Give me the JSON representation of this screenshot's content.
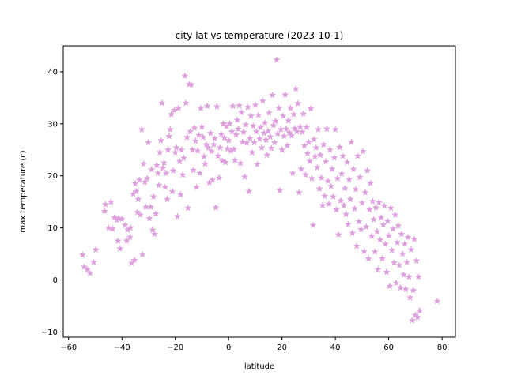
{
  "chart_data": {
    "type": "scatter",
    "title": "city lat vs temperature  (2023-10-1)",
    "xlabel": "latitude",
    "ylabel": "max temperature (c)",
    "xlim": [
      -62,
      85
    ],
    "ylim": [
      -11,
      45
    ],
    "xticks": [
      -60,
      -40,
      -20,
      0,
      20,
      40,
      60,
      80
    ],
    "yticks": [
      -10,
      0,
      10,
      20,
      30,
      40
    ],
    "grid": false,
    "marker": "star",
    "color": "#dda0dd",
    "points": [
      [
        -54.8,
        4.8
      ],
      [
        -54.2,
        2.5
      ],
      [
        -53.0,
        2.0
      ],
      [
        -52.0,
        1.3
      ],
      [
        -50.6,
        3.4
      ],
      [
        -49.8,
        5.8
      ],
      [
        -46.5,
        13.2
      ],
      [
        -46.2,
        14.5
      ],
      [
        -45.0,
        10.0
      ],
      [
        -44.1,
        15.0
      ],
      [
        -43.5,
        9.8
      ],
      [
        -42.8,
        12.0
      ],
      [
        -42.0,
        11.5
      ],
      [
        -41.5,
        7.5
      ],
      [
        -41.2,
        11.8
      ],
      [
        -40.7,
        6.0
      ],
      [
        -40.0,
        11.7
      ],
      [
        -38.8,
        10.5
      ],
      [
        -38.2,
        7.5
      ],
      [
        -37.8,
        9.6
      ],
      [
        -37.0,
        8.2
      ],
      [
        -36.8,
        10.0
      ],
      [
        -36.4,
        3.2
      ],
      [
        -35.8,
        16.5
      ],
      [
        -35.3,
        3.8
      ],
      [
        -35.0,
        18.5
      ],
      [
        -34.6,
        17.0
      ],
      [
        -34.2,
        13.0
      ],
      [
        -33.9,
        15.5
      ],
      [
        -33.5,
        19.2
      ],
      [
        -33.1,
        12.5
      ],
      [
        -32.6,
        28.9
      ],
      [
        -32.3,
        4.9
      ],
      [
        -31.9,
        22.3
      ],
      [
        -31.4,
        18.8
      ],
      [
        -31.0,
        14.0
      ],
      [
        -30.5,
        19.5
      ],
      [
        -30.1,
        26.4
      ],
      [
        -29.7,
        11.8
      ],
      [
        -29.2,
        14.0
      ],
      [
        -28.9,
        21.2
      ],
      [
        -28.5,
        9.6
      ],
      [
        -28.2,
        16.0
      ],
      [
        -27.8,
        8.8
      ],
      [
        -27.3,
        12.7
      ],
      [
        -26.9,
        22.0
      ],
      [
        -26.5,
        20.5
      ],
      [
        -26.1,
        18.2
      ],
      [
        -25.8,
        24.5
      ],
      [
        -25.4,
        26.8
      ],
      [
        -25.0,
        34.0
      ],
      [
        -24.6,
        21.5
      ],
      [
        -24.2,
        22.5
      ],
      [
        -23.8,
        17.8
      ],
      [
        -23.4,
        20.5
      ],
      [
        -23.0,
        15.5
      ],
      [
        -22.7,
        25.0
      ],
      [
        -22.3,
        27.6
      ],
      [
        -21.9,
        28.9
      ],
      [
        -21.5,
        31.8
      ],
      [
        -21.1,
        17.0
      ],
      [
        -20.8,
        21.0
      ],
      [
        -20.4,
        32.6
      ],
      [
        -20.0,
        24.5
      ],
      [
        -19.6,
        25.4
      ],
      [
        -19.2,
        12.2
      ],
      [
        -18.8,
        33.0
      ],
      [
        -18.4,
        22.8
      ],
      [
        -18.0,
        16.4
      ],
      [
        -17.6,
        25.0
      ],
      [
        -17.2,
        20.2
      ],
      [
        -16.8,
        23.4
      ],
      [
        -16.4,
        39.2
      ],
      [
        -16.0,
        34.0
      ],
      [
        -15.6,
        27.4
      ],
      [
        -15.2,
        13.8
      ],
      [
        -14.8,
        37.6
      ],
      [
        -14.4,
        28.5
      ],
      [
        -14.0,
        37.5
      ],
      [
        -13.6,
        25.0
      ],
      [
        -13.2,
        21.1
      ],
      [
        -12.8,
        29.2
      ],
      [
        -12.4,
        26.7
      ],
      [
        -12.0,
        17.8
      ],
      [
        -11.6,
        24.8
      ],
      [
        -11.2,
        27.8
      ],
      [
        -10.8,
        20.5
      ],
      [
        -10.4,
        33.0
      ],
      [
        -10.0,
        29.4
      ],
      [
        -9.6,
        27.4
      ],
      [
        -9.2,
        23.7
      ],
      [
        -8.8,
        22.3
      ],
      [
        -8.4,
        26.0
      ],
      [
        -8.0,
        33.4
      ],
      [
        -7.6,
        25.4
      ],
      [
        -7.2,
        18.7
      ],
      [
        -6.8,
        28.2
      ],
      [
        -6.4,
        24.7
      ],
      [
        -6.0,
        19.2
      ],
      [
        -5.6,
        26.0
      ],
      [
        -5.2,
        27.2
      ],
      [
        -4.8,
        13.9
      ],
      [
        -4.4,
        33.3
      ],
      [
        -4.0,
        23.8
      ],
      [
        -3.6,
        19.6
      ],
      [
        -3.2,
        25.4
      ],
      [
        -2.8,
        28.0
      ],
      [
        -2.4,
        22.9
      ],
      [
        -2.0,
        30.0
      ],
      [
        -1.6,
        27.3
      ],
      [
        -1.2,
        22.6
      ],
      [
        -0.8,
        29.5
      ],
      [
        -0.4,
        25.2
      ],
      [
        0.0,
        26.8
      ],
      [
        0.4,
        30.0
      ],
      [
        0.8,
        24.8
      ],
      [
        1.2,
        28.5
      ],
      [
        1.6,
        33.4
      ],
      [
        2.0,
        25.1
      ],
      [
        2.4,
        23.0
      ],
      [
        2.8,
        27.9
      ],
      [
        3.2,
        30.7
      ],
      [
        3.6,
        29.0
      ],
      [
        4.0,
        33.5
      ],
      [
        4.4,
        22.4
      ],
      [
        4.8,
        32.2
      ],
      [
        5.2,
        26.5
      ],
      [
        5.6,
        28.4
      ],
      [
        6.0,
        19.8
      ],
      [
        6.4,
        29.8
      ],
      [
        6.8,
        26.3
      ],
      [
        7.2,
        33.2
      ],
      [
        7.6,
        17.0
      ],
      [
        8.0,
        27.2
      ],
      [
        8.4,
        31.5
      ],
      [
        8.8,
        24.5
      ],
      [
        9.2,
        29.6
      ],
      [
        9.6,
        26.4
      ],
      [
        10.0,
        33.6
      ],
      [
        10.4,
        28.5
      ],
      [
        10.8,
        22.2
      ],
      [
        11.2,
        31.7
      ],
      [
        11.6,
        27.1
      ],
      [
        12.0,
        29.3
      ],
      [
        12.4,
        25.4
      ],
      [
        12.8,
        34.4
      ],
      [
        13.2,
        28.2
      ],
      [
        13.6,
        30.2
      ],
      [
        14.0,
        26.9
      ],
      [
        14.4,
        24.0
      ],
      [
        14.8,
        28.6
      ],
      [
        15.2,
        32.1
      ],
      [
        15.6,
        27.5
      ],
      [
        16.0,
        25.3
      ],
      [
        16.4,
        35.5
      ],
      [
        16.8,
        29.7
      ],
      [
        17.2,
        26.4
      ],
      [
        17.6,
        30.5
      ],
      [
        18.0,
        42.3
      ],
      [
        18.4,
        28.1
      ],
      [
        18.8,
        33.0
      ],
      [
        19.2,
        17.2
      ],
      [
        19.6,
        28.9
      ],
      [
        20.0,
        25.0
      ],
      [
        20.4,
        31.5
      ],
      [
        20.8,
        27.6
      ],
      [
        21.2,
        35.6
      ],
      [
        21.6,
        29.0
      ],
      [
        22.0,
        25.8
      ],
      [
        22.4,
        30.6
      ],
      [
        22.8,
        28.3
      ],
      [
        23.2,
        33.0
      ],
      [
        23.6,
        27.7
      ],
      [
        24.0,
        20.5
      ],
      [
        24.4,
        31.8
      ],
      [
        24.8,
        29.1
      ],
      [
        25.2,
        36.7
      ],
      [
        25.6,
        28.5
      ],
      [
        26.0,
        33.9
      ],
      [
        26.4,
        16.8
      ],
      [
        26.8,
        29.4
      ],
      [
        27.2,
        21.3
      ],
      [
        27.6,
        28.4
      ],
      [
        28.0,
        31.9
      ],
      [
        28.4,
        25.8
      ],
      [
        28.8,
        20.2
      ],
      [
        29.2,
        29.3
      ],
      [
        29.6,
        24.3
      ],
      [
        30.0,
        26.5
      ],
      [
        30.4,
        22.8
      ],
      [
        30.8,
        32.9
      ],
      [
        31.2,
        19.5
      ],
      [
        31.6,
        10.5
      ],
      [
        32.0,
        27.0
      ],
      [
        32.4,
        23.7
      ],
      [
        32.8,
        25.4
      ],
      [
        33.2,
        21.6
      ],
      [
        33.6,
        28.9
      ],
      [
        34.0,
        17.5
      ],
      [
        34.4,
        24.0
      ],
      [
        34.8,
        19.6
      ],
      [
        35.2,
        14.3
      ],
      [
        35.6,
        26.0
      ],
      [
        36.0,
        16.1
      ],
      [
        36.4,
        22.7
      ],
      [
        36.8,
        29.0
      ],
      [
        37.2,
        19.0
      ],
      [
        37.6,
        14.6
      ],
      [
        38.0,
        25.0
      ],
      [
        38.4,
        18.0
      ],
      [
        38.8,
        21.3
      ],
      [
        39.2,
        16.0
      ],
      [
        39.6,
        23.5
      ],
      [
        40.0,
        28.9
      ],
      [
        40.4,
        13.5
      ],
      [
        40.8,
        19.5
      ],
      [
        41.2,
        8.7
      ],
      [
        41.6,
        25.5
      ],
      [
        42.0,
        15.2
      ],
      [
        42.4,
        20.4
      ],
      [
        42.8,
        23.8
      ],
      [
        43.2,
        14.3
      ],
      [
        43.6,
        17.6
      ],
      [
        44.0,
        12.6
      ],
      [
        44.4,
        22.6
      ],
      [
        44.8,
        10.7
      ],
      [
        45.2,
        19.3
      ],
      [
        45.6,
        15.5
      ],
      [
        46.0,
        26.5
      ],
      [
        46.4,
        9.0
      ],
      [
        46.8,
        21.3
      ],
      [
        47.2,
        13.7
      ],
      [
        47.6,
        17.4
      ],
      [
        48.0,
        6.5
      ],
      [
        48.4,
        23.8
      ],
      [
        48.8,
        11.2
      ],
      [
        49.2,
        19.7
      ],
      [
        49.6,
        9.7
      ],
      [
        50.0,
        14.8
      ],
      [
        50.4,
        24.7
      ],
      [
        50.8,
        5.5
      ],
      [
        51.2,
        16.8
      ],
      [
        51.6,
        10.2
      ],
      [
        52.0,
        21.0
      ],
      [
        52.4,
        4.1
      ],
      [
        52.8,
        13.5
      ],
      [
        53.2,
        18.6
      ],
      [
        53.6,
        8.4
      ],
      [
        54.0,
        15.1
      ],
      [
        54.4,
        11.6
      ],
      [
        54.8,
        5.4
      ],
      [
        55.2,
        13.9
      ],
      [
        55.6,
        9.3
      ],
      [
        56.0,
        2.0
      ],
      [
        56.4,
        14.9
      ],
      [
        56.8,
        7.7
      ],
      [
        57.2,
        12.0
      ],
      [
        57.6,
        4.1
      ],
      [
        58.0,
        10.6
      ],
      [
        58.4,
        14.2
      ],
      [
        58.8,
        6.9
      ],
      [
        59.2,
        1.5
      ],
      [
        59.6,
        11.3
      ],
      [
        60.0,
        8.5
      ],
      [
        60.4,
        -1.2
      ],
      [
        60.8,
        13.8
      ],
      [
        61.2,
        5.7
      ],
      [
        61.6,
        9.8
      ],
      [
        62.0,
        3.3
      ],
      [
        62.4,
        12.5
      ],
      [
        62.8,
        -0.6
      ],
      [
        63.2,
        7.2
      ],
      [
        63.6,
        10.4
      ],
      [
        64.0,
        2.8
      ],
      [
        64.4,
        -1.5
      ],
      [
        64.8,
        8.8
      ],
      [
        65.2,
        5.0
      ],
      [
        65.6,
        1.0
      ],
      [
        66.0,
        6.9
      ],
      [
        66.4,
        -1.8
      ],
      [
        66.8,
        3.4
      ],
      [
        67.2,
        8.2
      ],
      [
        67.6,
        0.6
      ],
      [
        68.0,
        -3.4
      ],
      [
        68.4,
        5.8
      ],
      [
        68.8,
        -7.8
      ],
      [
        69.2,
        -2.0
      ],
      [
        69.6,
        7.8
      ],
      [
        70.0,
        -6.8
      ],
      [
        70.4,
        3.7
      ],
      [
        70.8,
        -7.2
      ],
      [
        71.2,
        0.6
      ],
      [
        71.6,
        -5.9
      ],
      [
        78.2,
        -4.1
      ]
    ]
  }
}
